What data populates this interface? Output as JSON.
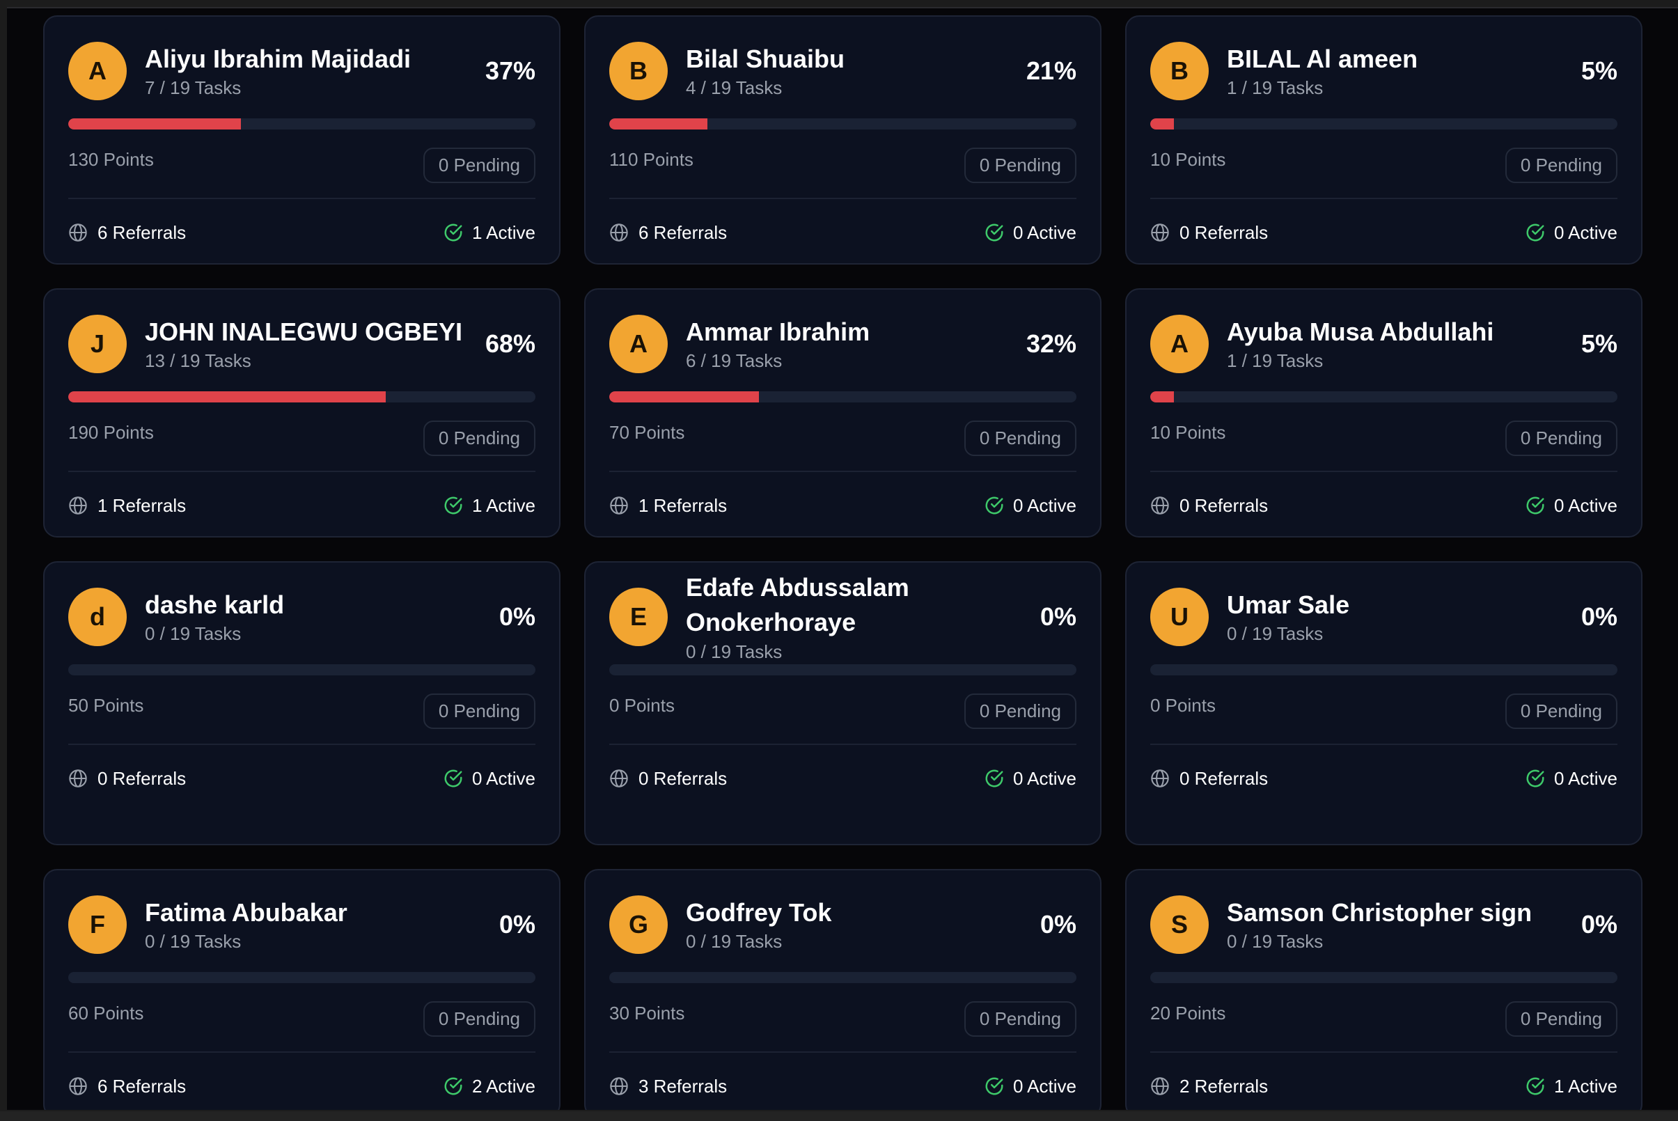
{
  "colors": {
    "accent_avatar": "#f2a531",
    "progress_fill": "#e0434a",
    "progress_track": "#1a2234",
    "active_check": "#3ec96a",
    "card_bg": "#0c1120"
  },
  "icons": {
    "referrals": "globe-icon",
    "active": "check-circle-icon"
  },
  "cards": [
    {
      "initial": "A",
      "name": "Aliyu Ibrahim Majidadi",
      "tasks": "7 / 19 Tasks",
      "percent": "37%",
      "progress": 0.37,
      "points": "130 Points",
      "pending": "0 Pending",
      "referrals": "6 Referrals",
      "active": "1 Active"
    },
    {
      "initial": "B",
      "name": "Bilal Shuaibu",
      "tasks": "4 / 19 Tasks",
      "percent": "21%",
      "progress": 0.21,
      "points": "110 Points",
      "pending": "0 Pending",
      "referrals": "6 Referrals",
      "active": "0 Active"
    },
    {
      "initial": "B",
      "name": "BILAL Al ameen",
      "tasks": "1 / 19 Tasks",
      "percent": "5%",
      "progress": 0.05,
      "points": "10 Points",
      "pending": "0 Pending",
      "referrals": "0 Referrals",
      "active": "0 Active"
    },
    {
      "initial": "J",
      "name": "JOHN INALEGWU OGBEYI",
      "tasks": "13 / 19 Tasks",
      "percent": "68%",
      "progress": 0.68,
      "points": "190 Points",
      "pending": "0 Pending",
      "referrals": "1 Referrals",
      "active": "1 Active"
    },
    {
      "initial": "A",
      "name": "Ammar Ibrahim",
      "tasks": "6 / 19 Tasks",
      "percent": "32%",
      "progress": 0.32,
      "points": "70 Points",
      "pending": "0 Pending",
      "referrals": "1 Referrals",
      "active": "0 Active"
    },
    {
      "initial": "A",
      "name": "Ayuba Musa Abdullahi",
      "tasks": "1 / 19 Tasks",
      "percent": "5%",
      "progress": 0.05,
      "points": "10 Points",
      "pending": "0 Pending",
      "referrals": "0 Referrals",
      "active": "0 Active"
    },
    {
      "initial": "d",
      "name": "dashe karld",
      "tasks": "0 / 19 Tasks",
      "percent": "0%",
      "progress": 0,
      "points": "50 Points",
      "pending": "0 Pending",
      "referrals": "0 Referrals",
      "active": "0 Active"
    },
    {
      "initial": "E",
      "name": "Edafe Abdussalam Onokerhoraye",
      "tasks": "0 / 19 Tasks",
      "percent": "0%",
      "progress": 0,
      "points": "0 Points",
      "pending": "0 Pending",
      "referrals": "0 Referrals",
      "active": "0 Active"
    },
    {
      "initial": "U",
      "name": "Umar Sale",
      "tasks": "0 / 19 Tasks",
      "percent": "0%",
      "progress": 0,
      "points": "0 Points",
      "pending": "0 Pending",
      "referrals": "0 Referrals",
      "active": "0 Active"
    },
    {
      "initial": "F",
      "name": "Fatima Abubakar",
      "tasks": "0 / 19 Tasks",
      "percent": "0%",
      "progress": 0,
      "points": "60 Points",
      "pending": "0 Pending",
      "referrals": "6 Referrals",
      "active": "2 Active"
    },
    {
      "initial": "G",
      "name": "Godfrey Tok",
      "tasks": "0 / 19 Tasks",
      "percent": "0%",
      "progress": 0,
      "points": "30 Points",
      "pending": "0 Pending",
      "referrals": "3 Referrals",
      "active": "0 Active"
    },
    {
      "initial": "S",
      "name": "Samson Christopher sign",
      "tasks": "0 / 19 Tasks",
      "percent": "0%",
      "progress": 0,
      "points": "20 Points",
      "pending": "0 Pending",
      "referrals": "2 Referrals",
      "active": "1 Active"
    }
  ]
}
